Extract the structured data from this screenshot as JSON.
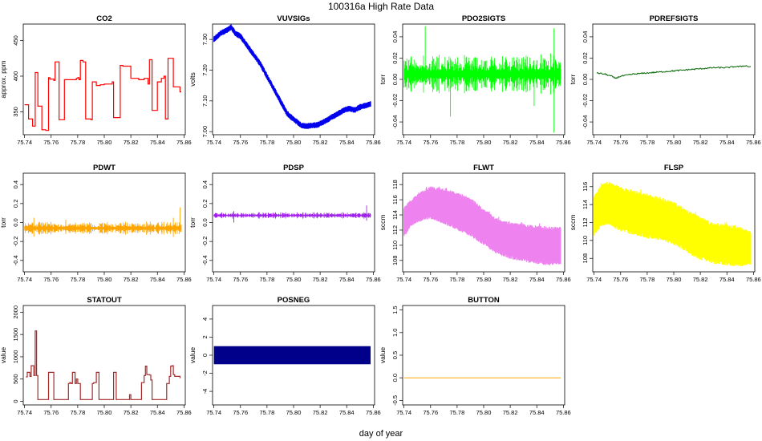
{
  "figure": {
    "title": "100316a   High Rate Data",
    "xlabel": "day of year"
  },
  "chart_data": [
    {
      "title": "CO2",
      "type": "line",
      "color": "#ff0000",
      "ylabel": "approx. ppm",
      "xlim": [
        75.739,
        75.861
      ],
      "ylim": [
        318,
        473
      ],
      "xticks": [
        "75.74",
        "75.76",
        "75.78",
        "75.80",
        "75.82",
        "75.84",
        "75.86"
      ],
      "yticks": [
        "350",
        "400",
        "450"
      ],
      "style": "step",
      "x": [
        75.74,
        75.742,
        75.743,
        75.744,
        75.746,
        75.748,
        75.749,
        75.75,
        75.752,
        75.753,
        75.754,
        75.756,
        75.758,
        75.759,
        75.762,
        75.763,
        75.764,
        75.766,
        75.768,
        75.77,
        75.775,
        75.778,
        75.779,
        75.78,
        75.781,
        75.782,
        75.784,
        75.786,
        75.788,
        75.79,
        75.791,
        75.792,
        75.794,
        75.796,
        75.797,
        75.8,
        75.805,
        75.806,
        75.807,
        75.808,
        75.81,
        75.812,
        75.814,
        75.82,
        75.826,
        75.83,
        75.833,
        75.834,
        75.835,
        75.836,
        75.837,
        75.84,
        75.843,
        75.845,
        75.846,
        75.847,
        75.848,
        75.85,
        75.852,
        75.854,
        75.856,
        75.857,
        75.858
      ],
      "values": [
        360,
        360,
        340,
        340,
        330,
        405,
        405,
        358,
        358,
        325,
        325,
        324,
        398,
        396,
        394,
        420,
        420,
        339,
        339,
        395,
        395,
        395,
        397,
        398,
        395,
        422,
        420,
        340,
        340,
        339,
        392,
        392,
        387,
        387,
        388,
        389,
        389,
        392,
        342,
        342,
        342,
        415,
        414,
        397,
        395,
        397,
        389,
        423,
        423,
        352,
        352,
        392,
        397,
        400,
        340,
        340,
        425,
        425,
        385,
        385,
        385,
        378,
        378
      ]
    },
    {
      "title": "VUVSIGs",
      "type": "line",
      "color": "#0000ee",
      "ylabel": "volts",
      "xlim": [
        75.739,
        75.861
      ],
      "ylim": [
        6.99,
        7.35
      ],
      "xticks": [
        "75.74",
        "75.76",
        "75.78",
        "75.80",
        "75.82",
        "75.84",
        "75.86"
      ],
      "yticks": [
        "7.00",
        "7.10",
        "7.20",
        "7.30"
      ],
      "style": "band",
      "x": [
        75.74,
        75.745,
        75.75,
        75.753,
        75.756,
        75.76,
        75.765,
        75.77,
        75.775,
        75.78,
        75.785,
        75.79,
        75.795,
        75.8,
        75.803,
        75.806,
        75.81,
        75.814,
        75.818,
        75.822,
        75.826,
        75.83,
        75.834,
        75.838,
        75.842,
        75.846,
        75.85,
        75.854,
        75.858
      ],
      "values": [
        7.3,
        7.32,
        7.33,
        7.34,
        7.32,
        7.31,
        7.28,
        7.25,
        7.22,
        7.18,
        7.14,
        7.1,
        7.06,
        7.04,
        7.03,
        7.02,
        7.018,
        7.02,
        7.022,
        7.03,
        7.04,
        7.05,
        7.06,
        7.07,
        7.075,
        7.07,
        7.08,
        7.085,
        7.09
      ],
      "spread": 0.008
    },
    {
      "title": "PDO2SIGTS",
      "type": "line",
      "color": "#00ff00",
      "ylabel": "torr",
      "xlim": [
        75.739,
        75.861
      ],
      "ylim": [
        -0.052,
        0.052
      ],
      "xticks": [
        "75.74",
        "75.76",
        "75.78",
        "75.80",
        "75.82",
        "75.84",
        "75.86"
      ],
      "yticks": [
        "-0.04",
        "-0.02",
        "0.00",
        "0.02",
        "0.04"
      ],
      "style": "noise",
      "x": [
        75.74,
        75.858
      ],
      "values": [
        0.005,
        0.005
      ],
      "spread": 0.008,
      "spikes": [
        {
          "x": 75.756,
          "values": [
            -0.005,
            0.05
          ]
        },
        {
          "x": 75.775,
          "values": [
            -0.035,
            0.02
          ]
        },
        {
          "x": 75.838,
          "values": [
            -0.025,
            0.018
          ]
        },
        {
          "x": 75.853,
          "values": [
            -0.05,
            0.048
          ]
        }
      ]
    },
    {
      "title": "PDREFSIGTS",
      "type": "line",
      "color": "#006400",
      "ylabel": "torr",
      "xlim": [
        75.739,
        75.861
      ],
      "ylim": [
        -0.052,
        0.052
      ],
      "xticks": [
        "75.74",
        "75.76",
        "75.78",
        "75.80",
        "75.82",
        "75.84",
        "75.86"
      ],
      "yticks": [
        "-0.04",
        "-0.02",
        "0.00",
        "0.02",
        "0.04"
      ],
      "style": "line",
      "x": [
        75.742,
        75.748,
        75.753,
        75.756,
        75.76,
        75.765,
        75.77,
        75.78,
        75.79,
        75.8,
        75.81,
        75.82,
        75.83,
        75.84,
        75.846,
        75.85,
        75.854,
        75.856,
        75.858
      ],
      "values": [
        0.006,
        0.005,
        0.003,
        0.001,
        0.003,
        0.004,
        0.005,
        0.006,
        0.007,
        0.008,
        0.009,
        0.01,
        0.011,
        0.011,
        0.012,
        0.012,
        0.013,
        0.012,
        0.012
      ]
    },
    {
      "title": "PDWT",
      "type": "line",
      "color": "#ffa500",
      "ylabel": "torr",
      "xlim": [
        75.739,
        75.861
      ],
      "ylim": [
        -0.52,
        0.52
      ],
      "xticks": [
        "75.74",
        "75.76",
        "75.78",
        "75.80",
        "75.82",
        "75.84",
        "75.86"
      ],
      "yticks": [
        "-0.4",
        "-0.2",
        "0.0",
        "0.2",
        "0.4"
      ],
      "style": "noise",
      "x": [
        75.74,
        75.858
      ],
      "values": [
        -0.06,
        -0.06
      ],
      "spread": 0.03,
      "spikes": [
        {
          "x": 75.747,
          "values": [
            -0.15,
            0.05
          ]
        },
        {
          "x": 75.771,
          "values": [
            -0.12,
            0.03
          ]
        },
        {
          "x": 75.852,
          "values": [
            -0.15,
            0.05
          ]
        },
        {
          "x": 75.857,
          "values": [
            -0.1,
            0.16
          ]
        }
      ]
    },
    {
      "title": "PDSP",
      "type": "line",
      "color": "#a020f0",
      "ylabel": "torr",
      "xlim": [
        75.739,
        75.861
      ],
      "ylim": [
        -0.52,
        0.52
      ],
      "xticks": [
        "75.74",
        "75.76",
        "75.78",
        "75.80",
        "75.82",
        "75.84",
        "75.86"
      ],
      "yticks": [
        "-0.4",
        "-0.2",
        "0.0",
        "0.2",
        "0.4"
      ],
      "style": "noise",
      "x": [
        75.74,
        75.858
      ],
      "values": [
        0.075,
        0.075
      ],
      "spread": 0.015,
      "spikes": [
        {
          "x": 75.755,
          "values": [
            0.0,
            0.12
          ]
        },
        {
          "x": 75.855,
          "values": [
            0.02,
            0.18
          ]
        }
      ]
    },
    {
      "title": "FLWT",
      "type": "line",
      "color": "#ee82ee",
      "ylabel": "sccm",
      "xlim": [
        75.739,
        75.861
      ],
      "ylim": [
        106.5,
        119.5
      ],
      "xticks": [
        "75.74",
        "75.76",
        "75.78",
        "75.80",
        "75.82",
        "75.84",
        "75.86"
      ],
      "yticks": [
        "108",
        "110",
        "112",
        "114",
        "116",
        "118"
      ],
      "style": "envelope",
      "x": [
        75.74,
        75.745,
        75.75,
        75.76,
        75.77,
        75.78,
        75.79,
        75.8,
        75.81,
        75.82,
        75.83,
        75.84,
        75.85,
        75.858
      ],
      "upper": [
        115.0,
        116.0,
        116.8,
        117.8,
        117.5,
        117.0,
        116.3,
        114.8,
        113.6,
        113.0,
        112.8,
        112.6,
        112.5,
        112.4
      ],
      "lower": [
        111.0,
        112.5,
        113.0,
        113.5,
        112.8,
        112.0,
        111.2,
        110.0,
        108.8,
        108.2,
        107.8,
        107.5,
        107.3,
        107.5
      ]
    },
    {
      "title": "FLSP",
      "type": "line",
      "color": "#ffff00",
      "ylabel": "sccm",
      "xlim": [
        75.739,
        75.861
      ],
      "ylim": [
        106.5,
        117.5
      ],
      "xticks": [
        "75.74",
        "75.76",
        "75.78",
        "75.80",
        "75.82",
        "75.84",
        "75.86"
      ],
      "yticks": [
        "108",
        "110",
        "112",
        "114",
        "116"
      ],
      "style": "envelope",
      "x": [
        75.74,
        75.745,
        75.75,
        75.76,
        75.77,
        75.78,
        75.79,
        75.8,
        75.81,
        75.82,
        75.83,
        75.84,
        75.85,
        75.858
      ],
      "upper": [
        115.0,
        116.2,
        116.6,
        116.0,
        115.6,
        115.2,
        114.8,
        114.3,
        113.5,
        112.6,
        112.0,
        111.8,
        111.5,
        111.0
      ],
      "lower": [
        110.5,
        111.5,
        111.8,
        111.0,
        110.6,
        110.2,
        110.0,
        109.5,
        108.6,
        107.8,
        107.4,
        107.2,
        107.1,
        107.3
      ]
    },
    {
      "title": "STATOUT",
      "type": "line",
      "color": "#a52a2a",
      "ylabel": "value",
      "xlim": [
        75.739,
        75.861
      ],
      "ylim": [
        -80,
        2150
      ],
      "xticks": [
        "75.74",
        "75.76",
        "75.78",
        "75.80",
        "75.82",
        "75.84",
        "75.86"
      ],
      "yticks": [
        "0",
        "500",
        "1000",
        "1500",
        "2000"
      ],
      "style": "step",
      "x": [
        75.741,
        75.742,
        75.743,
        75.744,
        75.745,
        75.746,
        75.747,
        75.748,
        75.749,
        75.75,
        75.752,
        75.757,
        75.758,
        75.759,
        75.762,
        75.772,
        75.773,
        75.774,
        75.775,
        75.776,
        75.777,
        75.778,
        75.779,
        75.78,
        75.782,
        75.79,
        75.791,
        75.792,
        75.794,
        75.795,
        75.796,
        75.806,
        75.807,
        75.808,
        75.809,
        75.818,
        75.819,
        75.82,
        75.827,
        75.828,
        75.829,
        75.83,
        75.831,
        75.832,
        75.834,
        75.835,
        75.836,
        75.838,
        75.846,
        75.847,
        75.848,
        75.849,
        75.85,
        75.851,
        75.852,
        75.853,
        75.857
      ],
      "values": [
        550,
        650,
        650,
        560,
        800,
        800,
        580,
        1580,
        580,
        40,
        40,
        40,
        650,
        650,
        40,
        40,
        400,
        420,
        400,
        650,
        650,
        400,
        500,
        400,
        40,
        40,
        400,
        420,
        650,
        650,
        40,
        40,
        650,
        650,
        40,
        40,
        150,
        40,
        40,
        420,
        420,
        580,
        790,
        600,
        590,
        480,
        40,
        40,
        40,
        400,
        400,
        560,
        790,
        800,
        600,
        560,
        520
      ]
    },
    {
      "title": "POSNEG",
      "type": "bar",
      "color": "#00008b",
      "ylabel": "value",
      "xlim": [
        75.739,
        75.861
      ],
      "ylim": [
        -5.5,
        5.5
      ],
      "xticks": [
        "75.74",
        "75.76",
        "75.78",
        "75.80",
        "75.82",
        "75.84",
        "75.86"
      ],
      "yticks": [
        "-4",
        "-2",
        "0",
        "2",
        "4"
      ],
      "style": "band",
      "x": [
        75.74,
        75.858
      ],
      "values": [
        0,
        0
      ],
      "spread": 1
    },
    {
      "title": "BUTTON",
      "type": "line",
      "color": "#ffa500",
      "ylabel": "value",
      "xlim": [
        75.739,
        75.861
      ],
      "ylim": [
        -0.6,
        1.6
      ],
      "xticks": [
        "75.74",
        "75.76",
        "75.78",
        "75.80",
        "75.82",
        "75.84",
        "75.86"
      ],
      "yticks": [
        "-0.5",
        "0.0",
        "0.5",
        "1.0",
        "1.5"
      ],
      "style": "line",
      "x": [
        75.74,
        75.858
      ],
      "values": [
        0,
        0
      ]
    }
  ]
}
